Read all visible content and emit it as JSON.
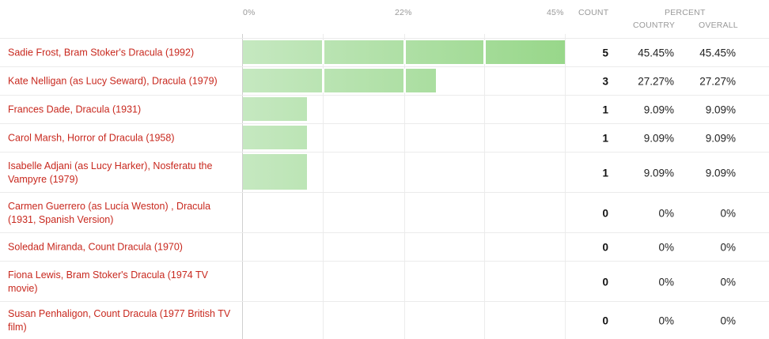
{
  "chart_data": {
    "type": "bar",
    "orientation": "horizontal",
    "axis_ticks": [
      "0%",
      "22%",
      "45%"
    ],
    "xlim": [
      0,
      45.45
    ],
    "headers": {
      "count": "COUNT",
      "percent": "PERCENT",
      "country": "COUNTRY",
      "overall": "OVERALL"
    },
    "colors": {
      "bar_start": "#c5e8c0",
      "bar_end": "#98d78a",
      "label": "#c8281e"
    },
    "rows": [
      {
        "label": "Sadie Frost, Bram Stoker's Dracula (1992)",
        "count": "5",
        "value": 45.45,
        "country": "45.45%",
        "overall": "45.45%"
      },
      {
        "label": "Kate Nelligan (as Lucy Seward), Dracula (1979)",
        "count": "3",
        "value": 27.27,
        "country": "27.27%",
        "overall": "27.27%"
      },
      {
        "label": "Frances Dade, Dracula (1931)",
        "count": "1",
        "value": 9.09,
        "country": "9.09%",
        "overall": "9.09%"
      },
      {
        "label": "Carol Marsh, Horror of Dracula (1958)",
        "count": "1",
        "value": 9.09,
        "country": "9.09%",
        "overall": "9.09%"
      },
      {
        "label": "Isabelle Adjani (as Lucy Harker), Nosferatu the Vampyre (1979)",
        "count": "1",
        "value": 9.09,
        "country": "9.09%",
        "overall": "9.09%"
      },
      {
        "label": "Carmen Guerrero (as Lucía Weston) , Dracula (1931, Spanish Version)",
        "count": "0",
        "value": 0,
        "country": "0%",
        "overall": "0%"
      },
      {
        "label": "Soledad Miranda, Count Dracula (1970)",
        "count": "0",
        "value": 0,
        "country": "0%",
        "overall": "0%"
      },
      {
        "label": "Fiona Lewis, Bram Stoker's Dracula (1974 TV movie)",
        "count": "0",
        "value": 0,
        "country": "0%",
        "overall": "0%"
      },
      {
        "label": "Susan Penhaligon, Count Dracula (1977 British TV film)",
        "count": "0",
        "value": 0,
        "country": "0%",
        "overall": "0%"
      }
    ]
  }
}
